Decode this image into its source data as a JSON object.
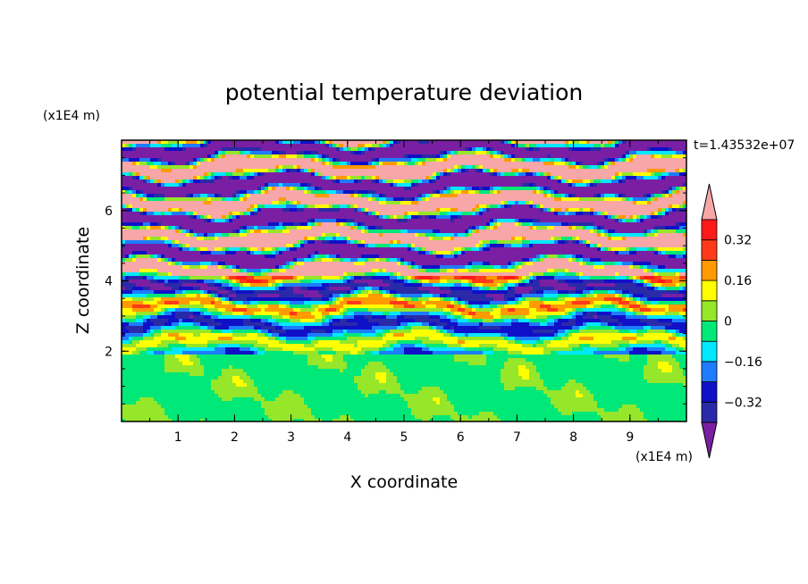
{
  "chart_data": {
    "type": "heatmap",
    "title": "potential temperature deviation",
    "xlabel": "X coordinate",
    "ylabel": "Z coordinate",
    "x_unit": "(x1E4 m)",
    "y_unit": "(x1E4 m)",
    "time_label": "t=1.43532e+07",
    "xlim": [
      0,
      10
    ],
    "ylim": [
      0,
      8
    ],
    "x_ticks": [
      "1",
      "2",
      "3",
      "4",
      "5",
      "6",
      "7",
      "8",
      "9"
    ],
    "y_ticks": [
      "2",
      "4",
      "6"
    ],
    "colorbar": {
      "levels": [
        -0.4,
        -0.32,
        -0.24,
        -0.16,
        -0.08,
        0,
        0.08,
        0.16,
        0.24,
        0.32,
        0.4
      ],
      "labeled_levels": [
        "0.32",
        "0.16",
        "0",
        "-0.16",
        "-0.32"
      ],
      "colors": [
        "#7a1fa3",
        "#2a2aa8",
        "#1010c8",
        "#1e7cff",
        "#00e8ff",
        "#00e878",
        "#96e62a",
        "#ffff00",
        "#ff9a00",
        "#ff3a1a",
        "#ff1a1a",
        "#f7a7a7"
      ]
    }
  }
}
